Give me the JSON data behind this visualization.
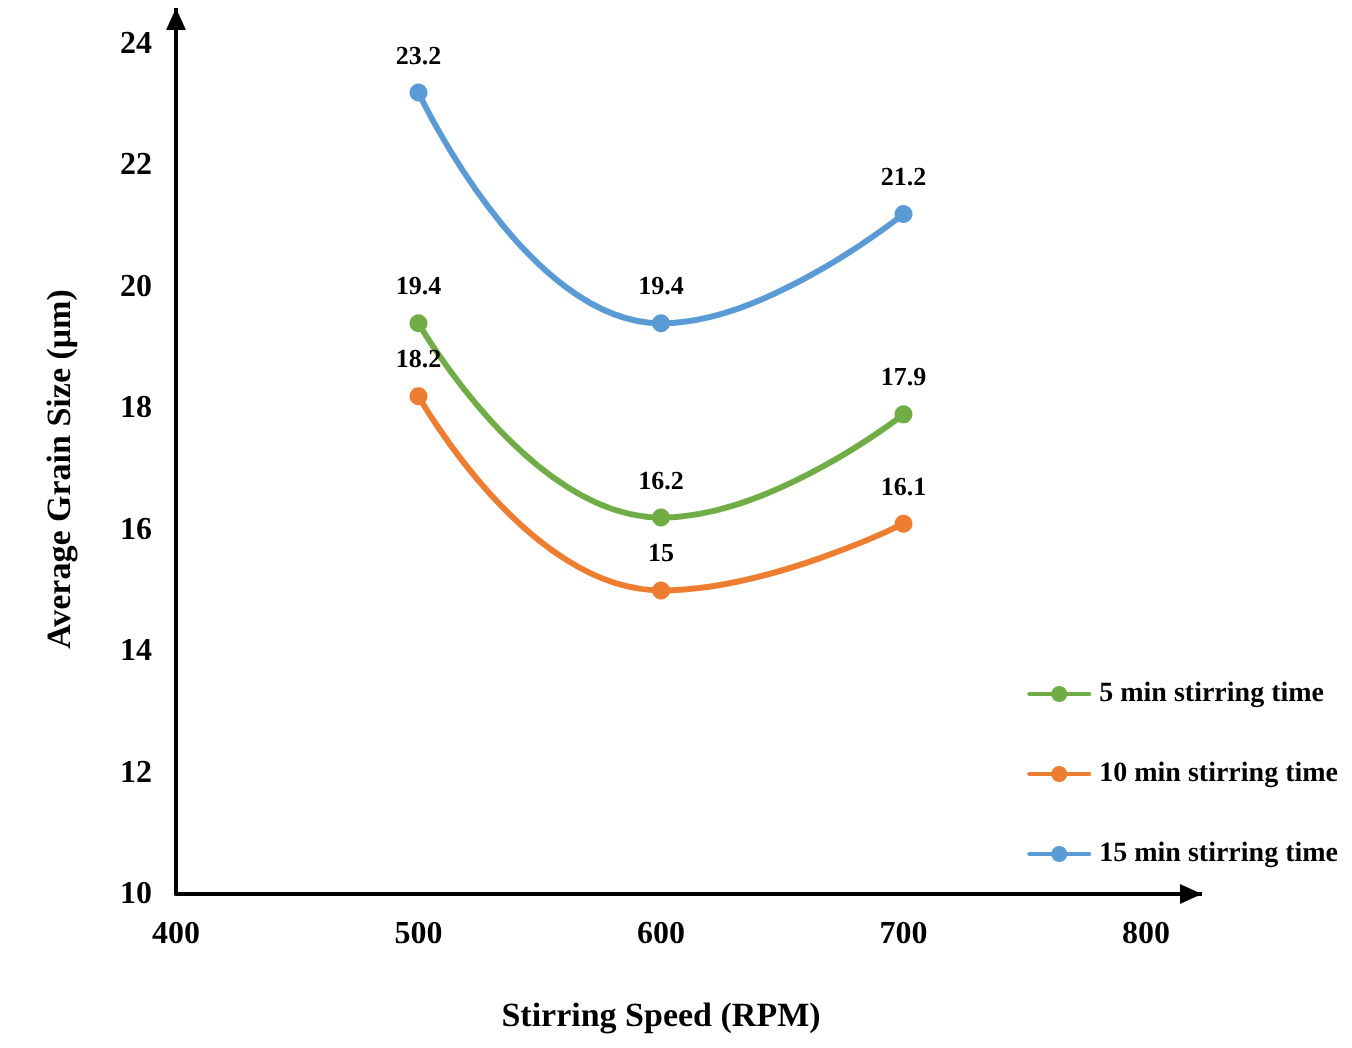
{
  "chart_data": {
    "type": "line",
    "xlabel": "Stirring Speed (RPM)",
    "ylabel": "Average Grain Size (μm)",
    "x": [
      500,
      600,
      700
    ],
    "series": [
      {
        "name": "5 min stirring time",
        "color": "#70ad47",
        "values": [
          19.4,
          16.2,
          17.9
        ]
      },
      {
        "name": "10 min stirring time",
        "color": "#ed7d31",
        "values": [
          18.2,
          15,
          16.1
        ]
      },
      {
        "name": "15 min stirring time",
        "color": "#5b9bd5",
        "values": [
          23.2,
          19.4,
          21.2
        ]
      }
    ],
    "xlim": [
      400,
      800
    ],
    "xticks": [
      400,
      500,
      600,
      700,
      800
    ],
    "ylim": [
      10,
      24
    ],
    "yticks": [
      10,
      12,
      14,
      16,
      18,
      20,
      22,
      24
    ],
    "grid": false,
    "legend": "bottom right",
    "marker": "circle",
    "line_style": "solid",
    "data_labels": true
  }
}
